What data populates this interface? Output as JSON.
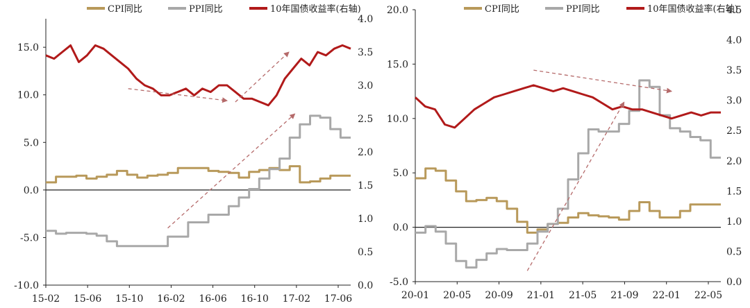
{
  "colors": {
    "cpi": "#b8995a",
    "ppi": "#a8a8a8",
    "yield": "#b11a1a",
    "arrow": "#b56a6a",
    "axis": "#222222"
  },
  "chart_data": [
    {
      "type": "line",
      "title": "",
      "legend": {
        "position": "top",
        "entries": [
          "CPI同比",
          "PPI同比",
          "10年国债收益率(右轴)"
        ]
      },
      "xlabels": [
        "15-02",
        "15-06",
        "15-10",
        "16-02",
        "16-06",
        "16-10",
        "17-02",
        "17-06"
      ],
      "ylim": [
        -10,
        18
      ],
      "yticks": [
        "-10.0",
        "-5.0",
        "0.0",
        "5.0",
        "10.0",
        "15.0"
      ],
      "y2lim": [
        0,
        4
      ],
      "y2ticks": [
        "0.0",
        "0.5",
        "1.0",
        "1.5",
        "2.0",
        "2.5",
        "3.0",
        "3.5",
        "4.0"
      ],
      "series": [
        {
          "name": "CPI同比",
          "axis": "left",
          "step": true,
          "values": [
            0.8,
            1.4,
            1.4,
            1.5,
            1.2,
            1.4,
            1.6,
            2.0,
            1.6,
            1.3,
            1.5,
            1.6,
            1.8,
            2.3,
            2.3,
            2.3,
            2.0,
            1.9,
            1.8,
            1.3,
            1.9,
            2.1,
            2.3,
            2.1,
            2.5,
            0.8,
            0.9,
            1.2,
            1.5,
            1.5
          ]
        },
        {
          "name": "PPI同比",
          "axis": "left",
          "step": true,
          "values": [
            -4.3,
            -4.6,
            -4.5,
            -4.5,
            -4.6,
            -4.8,
            -5.4,
            -5.9,
            -5.9,
            -5.9,
            -5.9,
            -5.9,
            -4.9,
            -4.9,
            -3.4,
            -3.4,
            -2.6,
            -2.6,
            -1.7,
            -0.8,
            0.1,
            1.2,
            2.2,
            3.3,
            5.5,
            6.9,
            7.8,
            7.6,
            6.4,
            5.5
          ]
        },
        {
          "name": "10年国债收益率(右轴)",
          "axis": "right",
          "step": false,
          "values": [
            3.45,
            3.4,
            3.5,
            3.6,
            3.35,
            3.45,
            3.6,
            3.55,
            3.45,
            3.35,
            3.25,
            3.1,
            3.0,
            2.95,
            2.85,
            2.85,
            2.9,
            2.95,
            2.85,
            2.95,
            2.9,
            3.0,
            3.0,
            2.9,
            2.8,
            2.8,
            2.75,
            2.7,
            2.85,
            3.1,
            3.25,
            3.4,
            3.3,
            3.5,
            3.45,
            3.55,
            3.6,
            3.55
          ]
        }
      ]
    },
    {
      "type": "line",
      "title": "",
      "legend": {
        "position": "top",
        "entries": [
          "CPI同比",
          "PPI同比",
          "10年国债收益率(右轴)"
        ]
      },
      "xlabels": [
        "20-01",
        "20-05",
        "20-09",
        "21-01",
        "21-05",
        "21-09",
        "22-01",
        "22-05"
      ],
      "ylim": [
        -5,
        20
      ],
      "yticks": [
        "-5.0",
        "0.0",
        "5.0",
        "10.0",
        "15.0",
        "20.0"
      ],
      "y2lim": [
        0,
        4.5
      ],
      "y2ticks": [
        "0.0",
        "0.5",
        "1.0",
        "1.5",
        "2.0",
        "2.5",
        "3.0",
        "3.5",
        "4.0",
        "4.5"
      ],
      "series": [
        {
          "name": "CPI同比",
          "axis": "left",
          "step": true,
          "values": [
            4.5,
            5.4,
            5.2,
            4.3,
            3.3,
            2.4,
            2.5,
            2.7,
            2.4,
            1.7,
            0.5,
            -0.5,
            -0.2,
            0.3,
            0.4,
            0.9,
            1.3,
            1.1,
            1.0,
            0.9,
            0.7,
            1.5,
            2.3,
            1.5,
            0.9,
            0.9,
            1.5,
            2.1,
            2.1,
            2.1
          ]
        },
        {
          "name": "PPI同比",
          "axis": "left",
          "step": true,
          "values": [
            -0.5,
            0.1,
            -0.4,
            -1.5,
            -3.1,
            -3.7,
            -3.0,
            -2.4,
            -2.0,
            -2.1,
            -2.1,
            -1.5,
            -0.4,
            0.3,
            1.7,
            4.4,
            6.8,
            9.0,
            8.8,
            8.8,
            9.5,
            10.7,
            13.5,
            12.9,
            10.3,
            9.1,
            8.8,
            8.3,
            8.0,
            6.4
          ]
        },
        {
          "name": "10年国债收益率(右轴)",
          "axis": "right",
          "step": false,
          "values": [
            3.05,
            2.9,
            2.85,
            2.6,
            2.55,
            2.7,
            2.85,
            2.95,
            3.05,
            3.1,
            3.15,
            3.2,
            3.25,
            3.2,
            3.15,
            3.2,
            3.15,
            3.1,
            3.05,
            2.95,
            2.85,
            2.9,
            2.85,
            2.85,
            2.8,
            2.75,
            2.7,
            2.75,
            2.8,
            2.75,
            2.8,
            2.8
          ]
        }
      ]
    }
  ],
  "arrows": [
    {
      "chart": 0,
      "axis": "right",
      "from": [
        10,
        2.95
      ],
      "to": [
        22,
        2.77
      ]
    },
    {
      "chart": 0,
      "axis": "right",
      "from": [
        23,
        2.75
      ],
      "to": [
        29.5,
        3.5
      ]
    },
    {
      "chart": 0,
      "axis": "left",
      "from": [
        12,
        -4.0
      ],
      "to": [
        24.5,
        8.0
      ]
    },
    {
      "chart": 1,
      "axis": "right",
      "from": [
        12,
        3.5
      ],
      "to": [
        26,
        3.15
      ]
    },
    {
      "chart": 1,
      "axis": "left",
      "from": [
        11,
        -4.0
      ],
      "to": [
        20.5,
        11.5
      ]
    }
  ]
}
